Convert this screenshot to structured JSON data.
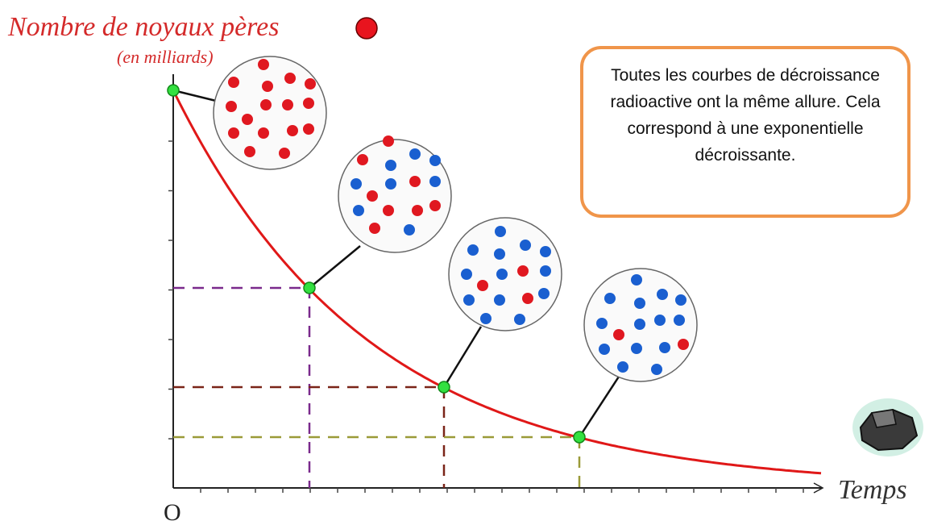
{
  "title": "Nombre de noyaux pères",
  "subtitle": "(en milliards)",
  "x_axis_label": "Temps",
  "origin_label": "O",
  "note": "Toutes les courbes de décroissance radioactive ont la même allure. Cela correspond à une exponentielle décroissante."
}
